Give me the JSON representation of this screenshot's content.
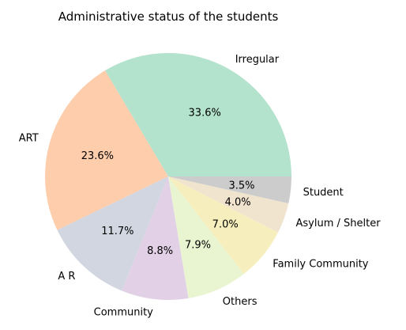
{
  "chart_data": {
    "type": "pie",
    "title": "Administrative status of the students",
    "start_angle_deg": 0,
    "direction": "counterclockwise",
    "slices": [
      {
        "label": "Irregular",
        "percent": 33.6,
        "percent_label": "33.6%",
        "color": "#b3e2cd"
      },
      {
        "label": "ART",
        "percent": 23.6,
        "percent_label": "23.6%",
        "color": "#fdcdac"
      },
      {
        "label": "A R",
        "percent": 11.7,
        "percent_label": "11.7%",
        "color": "#d1d6e1"
      },
      {
        "label": "Community",
        "percent": 8.8,
        "percent_label": "8.8%",
        "color": "#e2d1e6"
      },
      {
        "label": "Others",
        "percent": 7.9,
        "percent_label": "7.9%",
        "color": "#e9f4d0"
      },
      {
        "label": "Family Community",
        "percent": 7.0,
        "percent_label": "7.0%",
        "color": "#f6efbd"
      },
      {
        "label": "Asylum / Shelter",
        "percent": 4.0,
        "percent_label": "4.0%",
        "color": "#f1e4cf"
      },
      {
        "label": "Student",
        "percent": 3.5,
        "percent_label": "3.5%",
        "color": "#cccccc"
      }
    ]
  }
}
